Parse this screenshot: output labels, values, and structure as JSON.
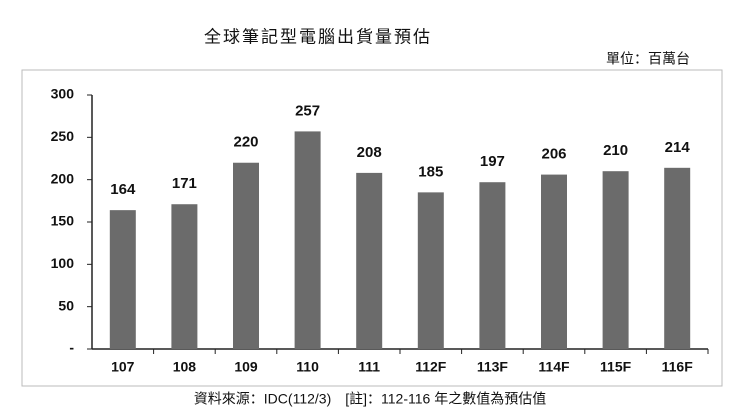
{
  "chart_data": {
    "type": "bar",
    "title": "全球筆記型電腦出貨量預估",
    "subtitle": "單位：百萬台",
    "note": "資料來源：IDC(112/3)　[註]：112-116 年之數值為預估值",
    "categories": [
      "107",
      "108",
      "109",
      "110",
      "111",
      "112F",
      "113F",
      "114F",
      "115F",
      "116F"
    ],
    "values": [
      164,
      171,
      220,
      257,
      208,
      185,
      197,
      206,
      210,
      214
    ],
    "color": "#6b6b6b",
    "ylim": [
      0,
      300
    ],
    "yticks": [
      {
        "value": 0,
        "label": "-"
      },
      50,
      100,
      150,
      200,
      250,
      300
    ]
  }
}
